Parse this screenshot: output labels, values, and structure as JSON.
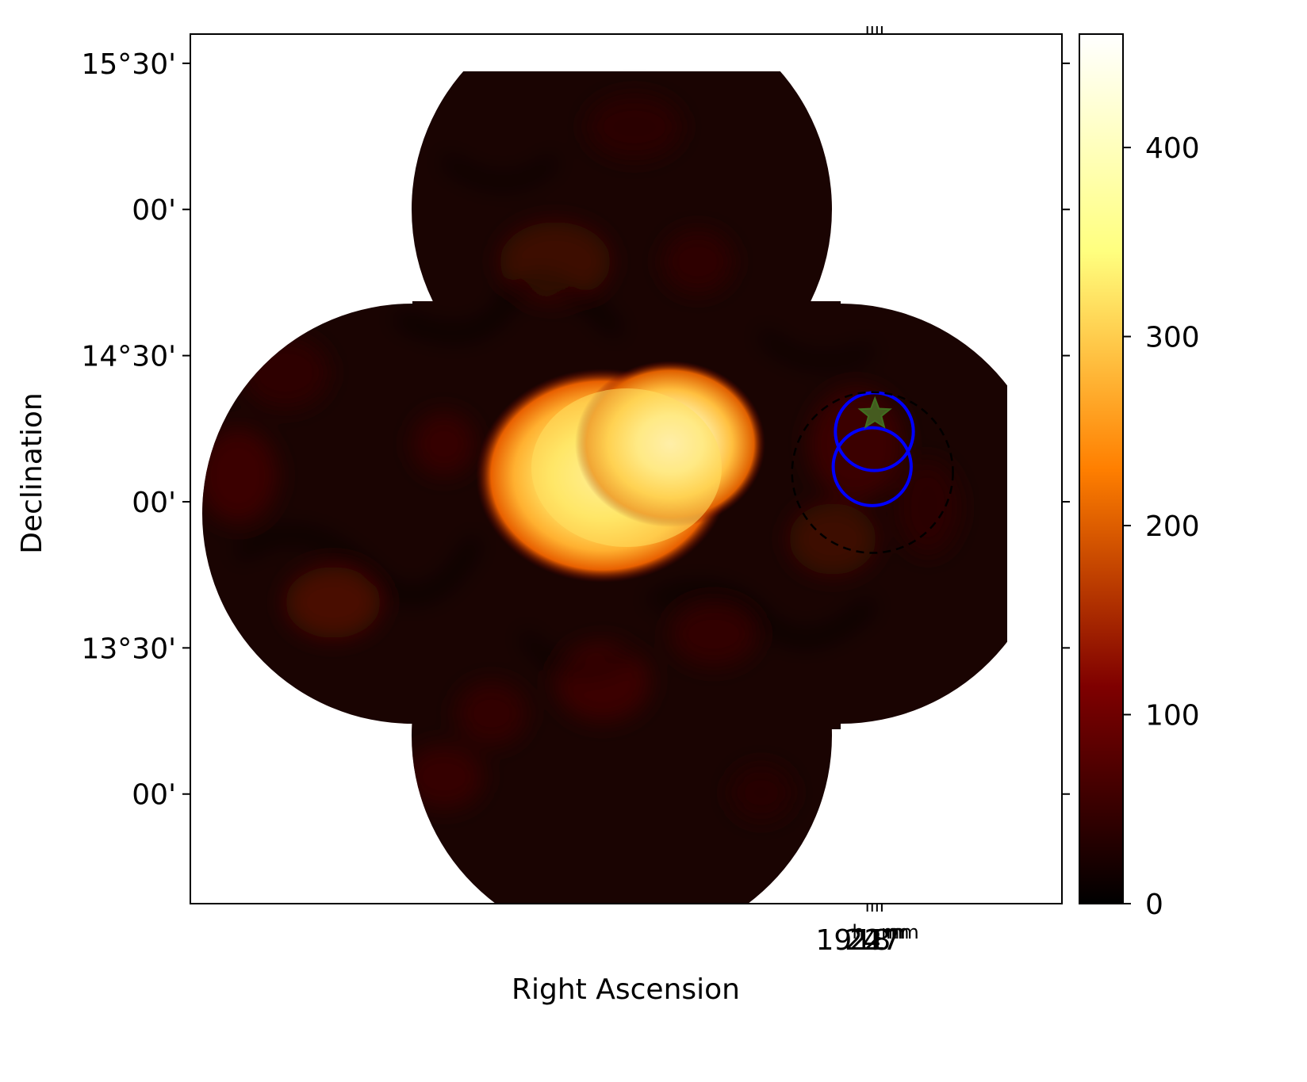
{
  "chart_data": {
    "type": "heatmap",
    "title": "",
    "xlabel": "Right Ascension",
    "ylabel": "Declination",
    "x_ticks": [
      {
        "base": "19",
        "base_unit": "h",
        "value": "27",
        "unit": "m"
      },
      {
        "base": "",
        "base_unit": "",
        "value": "24",
        "unit": "m"
      },
      {
        "base": "",
        "base_unit": "",
        "value": "21",
        "unit": "m"
      },
      {
        "base": "",
        "base_unit": "",
        "value": "18",
        "unit": "m"
      }
    ],
    "y_ticks": [
      "15°30'",
      "00'",
      "14°30'",
      "00'",
      "13°30'",
      "00'"
    ],
    "colorbar": {
      "colormap": "afmhot",
      "min": 0,
      "max": 460,
      "ticks": [
        "0",
        "100",
        "200",
        "300",
        "400"
      ],
      "tick_values": [
        0,
        100,
        200,
        300,
        400
      ]
    },
    "ra_range_min": [
      1588,
      1046
    ],
    "dec_range_deg": [
      12.625,
      15.6
    ],
    "ra_tick_min": [
      1167,
      1164,
      1161,
      1158
    ],
    "dec_tick_deg": [
      15.5,
      15.0,
      14.5,
      14.0,
      13.5,
      13.0
    ],
    "sources": [
      {
        "name": "circle-1",
        "ra_min": 1164.0,
        "dec_deg": 14.12,
        "radius_arcmin": 8,
        "color": "#0000ff",
        "style": "solid"
      },
      {
        "name": "circle-2",
        "ra_min": 1162.65,
        "dec_deg": 14.24,
        "radius_arcmin": 8,
        "color": "#0000ff",
        "style": "solid"
      },
      {
        "name": "dashed-circle",
        "ra_min": 1163.8,
        "dec_deg": 14.1,
        "radius_arcmin": 16.5,
        "color": "#000000",
        "style": "dashed"
      }
    ],
    "marker": {
      "type": "star",
      "ra_min": 1162.3,
      "dec_deg": 14.3,
      "color": "#4a7a2a"
    }
  }
}
